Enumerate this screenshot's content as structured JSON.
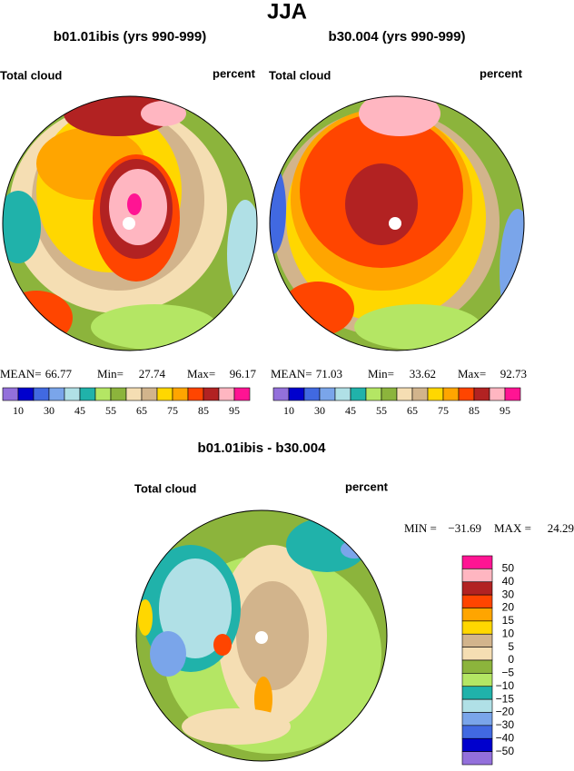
{
  "title": "JJA",
  "panels": [
    {
      "title": "b01.01ibis (yrs 990-999)",
      "left_label": "Total cloud",
      "right_label": "percent",
      "stats": [
        "MEAN=",
        "66.77",
        "Min=",
        "27.74",
        "Max=",
        "96.17"
      ]
    },
    {
      "title": "b30.004 (yrs 990-999)",
      "left_label": "Total cloud",
      "right_label": "percent",
      "stats": [
        "MEAN=",
        "71.03",
        "Min=",
        "33.62",
        "Max=",
        "92.73"
      ]
    }
  ],
  "colorbar": {
    "colors": [
      "#9370db",
      "#0000cd",
      "#4169e1",
      "#7aa5ea",
      "#b0e0e6",
      "#20b2aa",
      "#b4e664",
      "#8cb43c",
      "#f5deb3",
      "#d2b48c",
      "#ffd700",
      "#ffa500",
      "#ff4500",
      "#b22222",
      "#ffb6c1",
      "#ff1493"
    ],
    "labels": [
      "10",
      "30",
      "45",
      "55",
      "65",
      "75",
      "85",
      "95"
    ]
  },
  "diff": {
    "title": "b01.01ibis - b30.004",
    "left_label": "Total cloud",
    "right_label": "percent",
    "stats": [
      "MIN =",
      "−31.69",
      "MAX =",
      "24.29"
    ],
    "colorbar": {
      "colors": [
        "#ff1493",
        "#ffb6c1",
        "#b22222",
        "#ff4500",
        "#ffa500",
        "#ffd700",
        "#d2b48c",
        "#f5deb3",
        "#8cb43c",
        "#b4e664",
        "#20b2aa",
        "#b0e0e6",
        "#7aa5ea",
        "#4169e1",
        "#0000cd",
        "#9370db"
      ],
      "labels": [
        "50",
        "40",
        "30",
        "20",
        "15",
        "10",
        "5",
        "0",
        "−5",
        "−10",
        "−15",
        "−20",
        "−30",
        "−40",
        "−50"
      ]
    }
  }
}
